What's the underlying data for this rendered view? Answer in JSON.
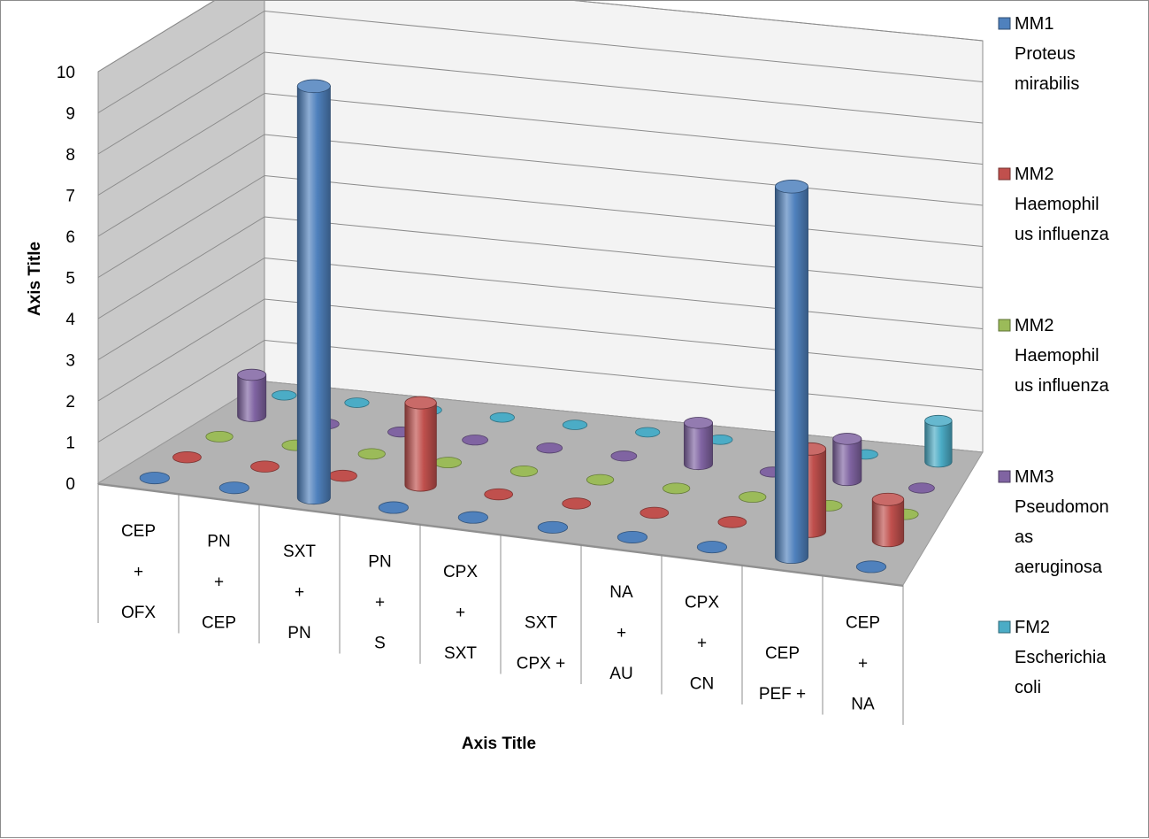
{
  "chart_data": {
    "type": "bar",
    "style": "3d-cylinder",
    "categories": [
      [
        "CEP",
        "+",
        "OFX"
      ],
      [
        "PN",
        "+",
        "CEP"
      ],
      [
        "SXT",
        "+",
        "PN"
      ],
      [
        "PN",
        "+",
        "S"
      ],
      [
        "CPX",
        "+",
        "SXT"
      ],
      [
        "SXT",
        "CPX +"
      ],
      [
        "NA",
        "+",
        "AU"
      ],
      [
        "CPX",
        "+",
        "CN"
      ],
      [
        "CEP",
        "PEF +"
      ],
      [
        "CEP",
        "+",
        "NA"
      ]
    ],
    "series": [
      {
        "name": [
          "MM1",
          "Proteus",
          "mirabilis"
        ],
        "color": "#4f81bd",
        "values": [
          0,
          0,
          10,
          0,
          0,
          0,
          0,
          0,
          9,
          0
        ]
      },
      {
        "name": [
          "MM2",
          "Haemophil",
          "us influenza"
        ],
        "color": "#c0504d",
        "values": [
          0,
          0,
          0,
          2,
          0,
          0,
          0,
          0,
          2,
          1
        ]
      },
      {
        "name": [
          "MM2",
          "Haemophil",
          "us influenza"
        ],
        "color": "#9bbb59",
        "values": [
          0,
          0,
          0,
          0,
          0,
          0,
          0,
          0,
          0,
          0
        ]
      },
      {
        "name": [
          "MM3",
          "Pseudomon",
          "as",
          "aeruginosa"
        ],
        "color": "#8064a2",
        "values": [
          1,
          0,
          0,
          0,
          0,
          0,
          1,
          0,
          1,
          0
        ]
      },
      {
        "name": [
          "FM2",
          "Escherichia",
          "coli"
        ],
        "color": "#4bacc6",
        "values": [
          0,
          0,
          0,
          0,
          0,
          0,
          0,
          1,
          0,
          1
        ]
      }
    ],
    "xlabel": "Axis Title",
    "ylabel": "Axis Title",
    "ylim": [
      0,
      10
    ],
    "yticks": [
      0,
      1,
      2,
      3,
      4,
      5,
      6,
      7,
      8,
      9,
      10
    ],
    "grid": true,
    "legend": "right"
  }
}
